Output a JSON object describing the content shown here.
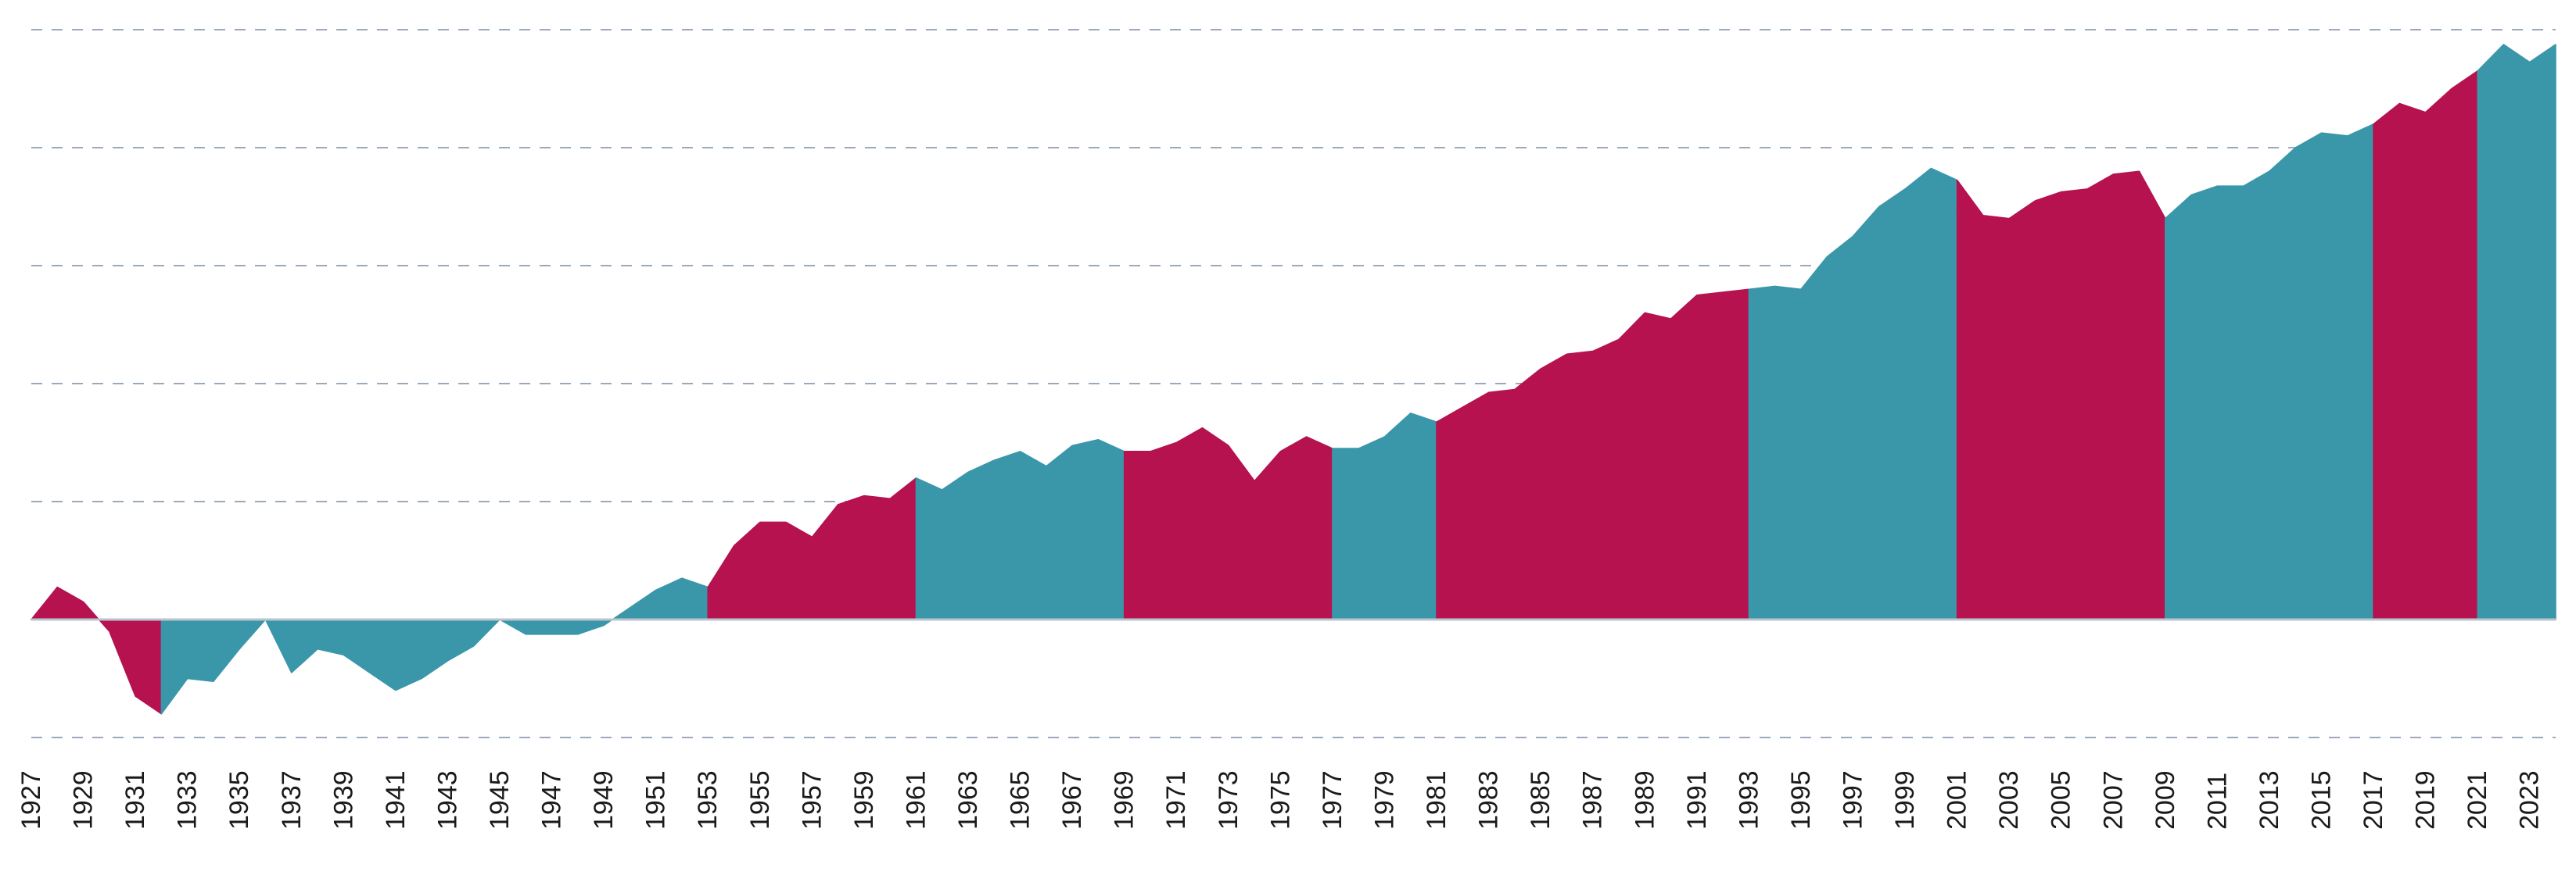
{
  "chart_data": {
    "type": "area",
    "title": "",
    "xlabel": "",
    "ylabel": "",
    "x": [
      1927,
      1928,
      1929,
      1930,
      1931,
      1932,
      1933,
      1934,
      1935,
      1936,
      1937,
      1938,
      1939,
      1940,
      1941,
      1942,
      1943,
      1944,
      1945,
      1946,
      1947,
      1948,
      1949,
      1950,
      1951,
      1952,
      1953,
      1954,
      1955,
      1956,
      1957,
      1958,
      1959,
      1960,
      1961,
      1962,
      1963,
      1964,
      1965,
      1966,
      1967,
      1968,
      1969,
      1970,
      1971,
      1972,
      1973,
      1974,
      1975,
      1976,
      1977,
      1978,
      1979,
      1980,
      1981,
      1982,
      1983,
      1984,
      1985,
      1986,
      1987,
      1988,
      1989,
      1990,
      1991,
      1992,
      1993,
      1994,
      1995,
      1996,
      1997,
      1998,
      1999,
      2000,
      2001,
      2002,
      2003,
      2004,
      2005,
      2006,
      2007,
      2008,
      2009,
      2010,
      2011,
      2012,
      2013,
      2014,
      2015,
      2016,
      2017,
      2018,
      2019,
      2020,
      2021,
      2022,
      2023,
      2024
    ],
    "values": [
      0,
      0.55,
      0.3,
      -0.2,
      -1.3,
      -1.6,
      -1.0,
      -1.05,
      -0.5,
      0,
      -0.9,
      -0.5,
      -0.6,
      -0.9,
      -1.2,
      -1.0,
      -0.7,
      -0.45,
      0,
      -0.25,
      -0.25,
      -0.25,
      -0.1,
      0.2,
      0.5,
      0.7,
      0.55,
      1.25,
      1.65,
      1.65,
      1.4,
      1.95,
      2.1,
      2.05,
      2.4,
      2.2,
      2.5,
      2.7,
      2.85,
      2.6,
      2.95,
      3.05,
      2.85,
      2.85,
      3.0,
      3.25,
      2.95,
      2.35,
      2.85,
      3.1,
      2.9,
      2.9,
      3.1,
      3.5,
      3.35,
      3.6,
      3.85,
      3.9,
      4.25,
      4.5,
      4.55,
      4.75,
      5.2,
      5.1,
      5.5,
      5.55,
      5.6,
      5.65,
      5.6,
      6.15,
      6.5,
      7.0,
      7.3,
      7.65,
      7.45,
      6.85,
      6.8,
      7.1,
      7.25,
      7.3,
      7.55,
      7.6,
      6.8,
      7.2,
      7.35,
      7.35,
      7.6,
      8.0,
      8.25,
      8.2,
      8.4,
      8.75,
      8.6,
      9.0,
      9.3,
      9.75,
      9.45,
      9.75
    ],
    "regimes": [
      {
        "start": 1927,
        "end": 1932,
        "color": "#b5124f"
      },
      {
        "start": 1932,
        "end": 1953,
        "color": "#3a97aa"
      },
      {
        "start": 1953,
        "end": 1961,
        "color": "#b5124f"
      },
      {
        "start": 1961,
        "end": 1969,
        "color": "#3a97aa"
      },
      {
        "start": 1969,
        "end": 1977,
        "color": "#b5124f"
      },
      {
        "start": 1977,
        "end": 1981,
        "color": "#3a97aa"
      },
      {
        "start": 1981,
        "end": 1993,
        "color": "#b5124f"
      },
      {
        "start": 1993,
        "end": 2001,
        "color": "#3a97aa"
      },
      {
        "start": 2001,
        "end": 2009,
        "color": "#b5124f"
      },
      {
        "start": 2009,
        "end": 2017,
        "color": "#3a97aa"
      },
      {
        "start": 2017,
        "end": 2021,
        "color": "#b5124f"
      },
      {
        "start": 2021,
        "end": 2024,
        "color": "#3a97aa"
      }
    ],
    "ylim": [
      -2,
      10
    ],
    "gridlines": [
      -2,
      0,
      2,
      4,
      6,
      8,
      10
    ],
    "x_tick_labels": [
      "1927",
      "1929",
      "1931",
      "1933",
      "1935",
      "1937",
      "1939",
      "1941",
      "1943",
      "1945",
      "1947",
      "1949",
      "1951",
      "1953",
      "1955",
      "1957",
      "1959",
      "1961",
      "1963",
      "1965",
      "1967",
      "1969",
      "1971",
      "1973",
      "1975",
      "1977",
      "1979",
      "1981",
      "1983",
      "1985",
      "1987",
      "1989",
      "1991",
      "1993",
      "1995",
      "1997",
      "1999",
      "2001",
      "2003",
      "2005",
      "2007",
      "2009",
      "2011",
      "2013",
      "2015",
      "2017",
      "2019",
      "2021",
      "2023"
    ],
    "y_tick_labels_visible": false,
    "grid": true,
    "grid_style": "dashed",
    "legend": "none",
    "colors": {
      "magenta": "#b5124f",
      "teal": "#3a97aa",
      "grid": "#9aa9bb",
      "zero_line": "#b9c4cf"
    }
  }
}
